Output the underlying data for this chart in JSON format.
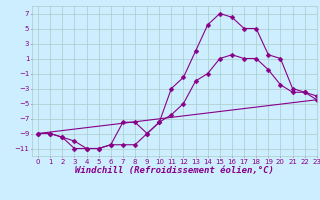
{
  "xlabel": "Windchill (Refroidissement éolien,°C)",
  "bg_color": "#cceeff",
  "grid_color": "#aacccc",
  "line_color": "#880088",
  "ylim": [
    -12,
    8
  ],
  "xlim": [
    -0.5,
    23
  ],
  "yticks": [
    -11,
    -9,
    -7,
    -5,
    -3,
    -1,
    1,
    3,
    5,
    7
  ],
  "xticks": [
    0,
    1,
    2,
    3,
    4,
    5,
    6,
    7,
    8,
    9,
    10,
    11,
    12,
    13,
    14,
    15,
    16,
    17,
    18,
    19,
    20,
    21,
    22,
    23
  ],
  "line1_x": [
    0,
    1,
    2,
    3,
    4,
    5,
    6,
    7,
    8,
    9,
    10,
    11,
    12,
    13,
    14,
    15,
    16,
    17,
    18,
    19,
    20,
    21,
    22,
    23
  ],
  "line1_y": [
    -9,
    -9,
    -9.5,
    -11,
    -11,
    -11,
    -10.5,
    -7.5,
    -7.5,
    -9,
    -7.5,
    -3,
    -1.5,
    2,
    5.5,
    7,
    6.5,
    5,
    5,
    1.5,
    1,
    -3,
    -3.5,
    -4
  ],
  "line2_x": [
    0,
    23
  ],
  "line2_y": [
    -9,
    -4.5
  ],
  "line3_x": [
    0,
    1,
    2,
    3,
    4,
    5,
    6,
    7,
    8,
    9,
    10,
    11,
    12,
    13,
    14,
    15,
    16,
    17,
    18,
    19,
    20,
    21,
    22,
    23
  ],
  "line3_y": [
    -9,
    -9,
    -9.5,
    -10,
    -11,
    -11,
    -10.5,
    -10.5,
    -10.5,
    -9,
    -7.5,
    -6.5,
    -5,
    -2,
    -1,
    1,
    1.5,
    1,
    1,
    -0.5,
    -2.5,
    -3.5,
    -3.5,
    -4.5
  ],
  "marker": "D",
  "markersize": 2.5,
  "linewidth": 0.8,
  "tick_fontsize": 5,
  "xlabel_fontsize": 6.5,
  "figwidth": 3.2,
  "figheight": 2.0,
  "dpi": 100
}
